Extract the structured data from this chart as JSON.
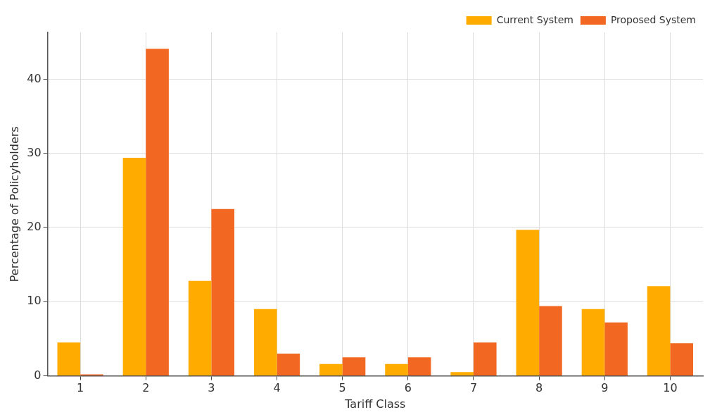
{
  "chart_data": {
    "type": "bar",
    "xlabel": "Tariff Class",
    "ylabel": "Percentage of Policyholders",
    "categories": [
      "1",
      "2",
      "3",
      "4",
      "5",
      "6",
      "7",
      "8",
      "9",
      "10"
    ],
    "series": [
      {
        "name": "Current System",
        "color": "#ffab00",
        "values": [
          4.5,
          29.4,
          12.8,
          9.0,
          1.6,
          1.6,
          0.5,
          19.7,
          9.0,
          12.1
        ]
      },
      {
        "name": "Proposed System",
        "color": "#f26722",
        "values": [
          0.2,
          44.1,
          22.5,
          3.0,
          2.5,
          2.5,
          4.5,
          9.4,
          7.2,
          4.4
        ]
      }
    ],
    "ylim": [
      0,
      46.3
    ],
    "yticks": [
      0,
      10,
      20,
      30,
      40
    ],
    "grid": true,
    "legend": "top right"
  }
}
